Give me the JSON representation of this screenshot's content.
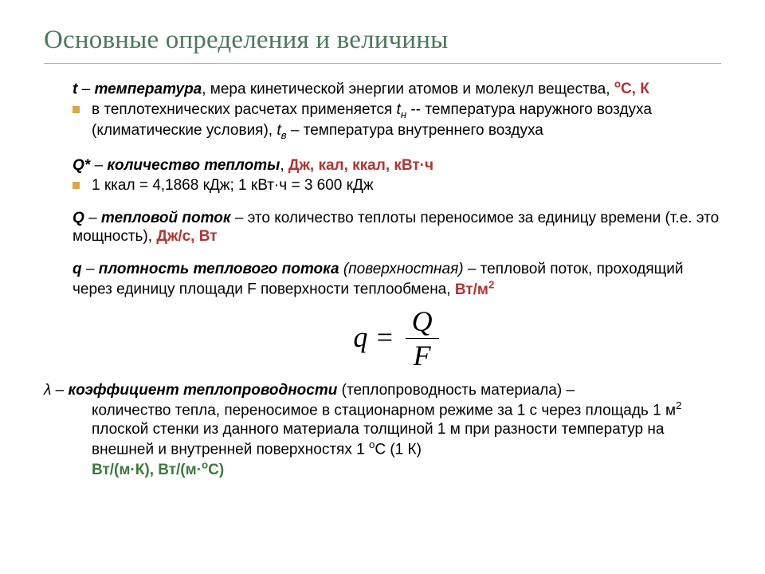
{
  "colors": {
    "title": "#4a7a5a",
    "bullet": "#d9a93e",
    "red": "#b8312f",
    "green": "#3a7c3a",
    "text": "#000000"
  },
  "title": "Основные определения и величины",
  "t_block": {
    "sym": "t",
    "term": "температура",
    "rest": ", мера кинетической энергии атомов и молекул вещества, ",
    "unit": "оС, К",
    "bullet1_a": "в теплотехнических расчетах применяется ",
    "bullet1_tn": "t",
    "bullet1_tn_sub": "н",
    "bullet1_b": " -- температура наружного воздуха (климатические условия), ",
    "bullet1_tv": "t",
    "bullet1_tv_sub": "в",
    "bullet1_c": " – температура внутреннего воздуха"
  },
  "qstar_block": {
    "sym": "Q*",
    "term": "количество теплоты",
    "rest": ", ",
    "unit": "Дж, кал, ккал, кВт·ч",
    "bullet": "1 ккал = 4,1868 кДж; 1 кВт·ч = 3 600 кДж"
  },
  "q_block": {
    "sym": "Q",
    "term": "тепловой поток",
    "rest1": " – это количество теплоты переносимое за единицу времени (т.е. это мощность), ",
    "unit": "Дж/с, Вт"
  },
  "qd_block": {
    "sym": "q",
    "term": "плотность теплового потока",
    "paren": " (поверхностная)",
    "rest": " – тепловой поток, проходящий через единицу площади F поверхности теплообмена,  ",
    "unit": "Вт/м",
    "unit_sup": "2"
  },
  "equation": {
    "lhs": "q =",
    "num": "Q",
    "den": "F"
  },
  "lambda_block": {
    "sym": "λ",
    "term": "коэффициент теплопроводности",
    "paren": " (теплопроводность материала) ",
    "rest1": "– количество тепла, переносимое в стационарном режиме за 1 с через площадь 1 м",
    "sup2": "2",
    "rest2": " плоской стенки из данного материала толщиной 1 м при разности температур на внешней и внутренней поверхностях 1 ",
    "deg": "о",
    "rest3": "С (1 К)",
    "unit": "Вт/(м·К), Вт/(м·оС)"
  }
}
